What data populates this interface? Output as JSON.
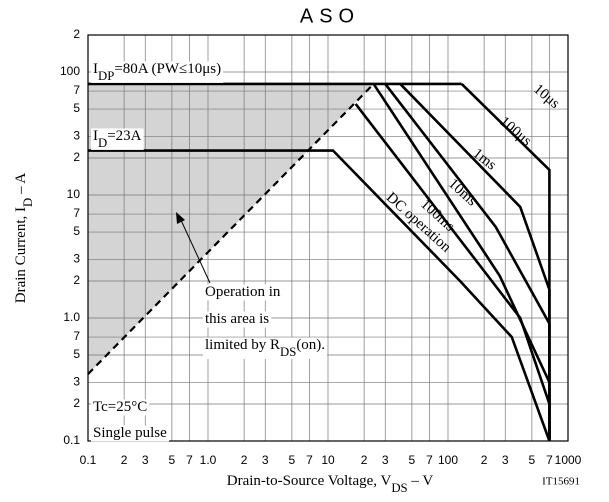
{
  "chart_data": {
    "type": "line",
    "title": "ASO",
    "xlabel": [
      "Drain-to-Source Voltage, V",
      "DS",
      " – V"
    ],
    "ylabel": [
      "Drain Current, I",
      "D",
      " – A"
    ],
    "source": "IT15691",
    "log_x": true,
    "log_y": true,
    "grid": true,
    "xlim": [
      0.1,
      1000
    ],
    "ylim": [
      0.1,
      200
    ],
    "xticks": [
      0.1,
      {
        "value": 0.2,
        "label": "2"
      },
      {
        "value": 0.3,
        "label": "3"
      },
      {
        "value": 0.5,
        "label": "5"
      },
      {
        "value": 0.7,
        "label": "7"
      },
      {
        "value": 1,
        "label": "1.0"
      },
      {
        "value": 2,
        "label": "2"
      },
      {
        "value": 3,
        "label": "3"
      },
      {
        "value": 5,
        "label": "5"
      },
      {
        "value": 7,
        "label": "7"
      },
      10,
      {
        "value": 20,
        "label": "2"
      },
      {
        "value": 30,
        "label": "3"
      },
      {
        "value": 50,
        "label": "5"
      },
      {
        "value": 70,
        "label": "7"
      },
      100,
      {
        "value": 200,
        "label": "2"
      },
      {
        "value": 300,
        "label": "3"
      },
      {
        "value": 500,
        "label": "5"
      },
      {
        "value": 700,
        "label": "7"
      },
      1000
    ],
    "yticks": [
      0.1,
      {
        "value": 0.2,
        "label": "2"
      },
      {
        "value": 0.3,
        "label": "3"
      },
      {
        "value": 0.5,
        "label": "5"
      },
      {
        "value": 0.7,
        "label": "7"
      },
      {
        "value": 1,
        "label": "1.0"
      },
      {
        "value": 2,
        "label": "2"
      },
      {
        "value": 3,
        "label": "3"
      },
      {
        "value": 5,
        "label": "5"
      },
      {
        "value": 7,
        "label": "7"
      },
      10,
      {
        "value": 20,
        "label": "2"
      },
      {
        "value": 30,
        "label": "3"
      },
      {
        "value": 50,
        "label": "5"
      },
      {
        "value": 70,
        "label": "7"
      },
      100,
      {
        "value": 200,
        "label": "2"
      }
    ],
    "series": [
      {
        "color": "#000000",
        "x": [
          0.1,
          130
        ],
        "values": [
          80,
          80
        ]
      },
      {
        "name": "10μs",
        "color": "#000000",
        "x": [
          130,
          700,
          700
        ],
        "values": [
          80,
          16,
          0.1
        ]
      },
      {
        "name": "100μs",
        "color": "#000000",
        "x": [
          40,
          400,
          700,
          700
        ],
        "values": [
          80,
          8,
          1.7,
          0.1
        ]
      },
      {
        "name": "1ms",
        "color": "#000000",
        "x": [
          30,
          250,
          700,
          700
        ],
        "values": [
          80,
          5.5,
          0.9,
          0.1
        ]
      },
      {
        "name": "10ms",
        "color": "#000000",
        "x": [
          24,
          270,
          700,
          700
        ],
        "values": [
          80,
          2.2,
          0.3,
          0.1
        ]
      },
      {
        "name": "100ms",
        "color": "#000000",
        "x": [
          17,
          400,
          700,
          700
        ],
        "values": [
          55,
          1,
          0.2,
          0.1
        ]
      },
      {
        "name": "DC operation",
        "color": "#000000",
        "x": [
          0.1,
          11,
          126,
          340,
          700
        ],
        "values": [
          23,
          23,
          2,
          0.7,
          0.1
        ]
      },
      {
        "color": "#000000",
        "style": "dashed",
        "fill": "#d4d4d4",
        "x": [
          0.1,
          24
        ],
        "values": [
          0.35,
          80
        ]
      }
    ],
    "annotations": [
      [
        "I",
        "DP",
        "=80A (PW≤10μs)"
      ],
      [
        "I",
        "D",
        "=23A"
      ],
      [
        "Operation in"
      ],
      [
        "this area is"
      ],
      [
        "limited by R",
        "DS",
        "(on)."
      ],
      [
        "Tc=25°C"
      ],
      [
        "Single pulse"
      ]
    ]
  }
}
